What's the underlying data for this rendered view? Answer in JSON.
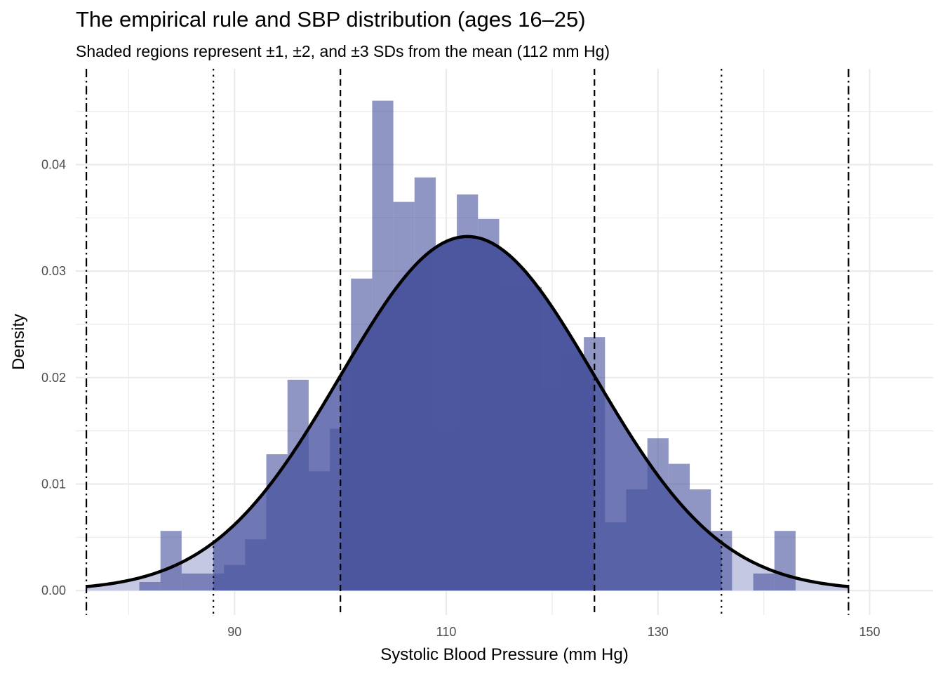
{
  "chart_data": {
    "type": "bar",
    "title": "The empirical rule and SBP distribution (ages 16–25)",
    "subtitle": "Shaded regions represent ±1, ±2, and ±3 SDs from the mean (112 mm Hg)",
    "xlabel": "Systolic Blood Pressure (mm Hg)",
    "ylabel": "Density",
    "xlim": [
      75,
      156
    ],
    "ylim": [
      -0.0023,
      0.049
    ],
    "x_ticks": [
      90,
      110,
      130,
      150
    ],
    "x_tick_labels": [
      "90",
      "110",
      "130",
      "150"
    ],
    "y_ticks": [
      0,
      0.01,
      0.02,
      0.03,
      0.04
    ],
    "y_tick_labels": [
      "0.00",
      "0.01",
      "0.02",
      "0.03",
      "0.04"
    ],
    "grid": true,
    "mean": 112,
    "sd": 12,
    "bin_width": 2,
    "histogram": {
      "bin_starts": [
        81,
        83,
        85,
        87,
        89,
        91,
        93,
        95,
        97,
        99,
        101,
        103,
        105,
        107,
        109,
        111,
        113,
        115,
        117,
        119,
        121,
        123,
        125,
        127,
        129,
        131,
        133,
        135,
        137,
        139,
        141
      ],
      "density": [
        0.0008,
        0.0056,
        0.0016,
        0.0016,
        0.0024,
        0.0048,
        0.0128,
        0.0198,
        0.0112,
        0.0152,
        0.0293,
        0.046,
        0.0365,
        0.0388,
        0.0152,
        0.0372,
        0.0349,
        0.0285,
        0.0285,
        0.019,
        0.0222,
        0.0238,
        0.0064,
        0.0095,
        0.0143,
        0.0119,
        0.0095,
        0.0056,
        0.0,
        0.0016,
        0.0056
      ]
    },
    "sd_lines": [
      {
        "x": 100,
        "style": "dashed"
      },
      {
        "x": 124,
        "style": "dashed"
      },
      {
        "x": 88,
        "style": "dotted"
      },
      {
        "x": 136,
        "style": "dotted"
      },
      {
        "x": 76,
        "style": "dashdot"
      },
      {
        "x": 148,
        "style": "dashdot"
      }
    ],
    "normal_curve": {
      "from": 76,
      "to": 148,
      "color": "#000000"
    },
    "colors": {
      "bar": "#4a559e",
      "band_1sd": "#4a559e",
      "band_2sd": "#6a73b2",
      "band_3sd": "#c5c8e3",
      "curve": "#000000",
      "grid": "#ebebeb",
      "tick_text": "#4d4d4d"
    }
  }
}
